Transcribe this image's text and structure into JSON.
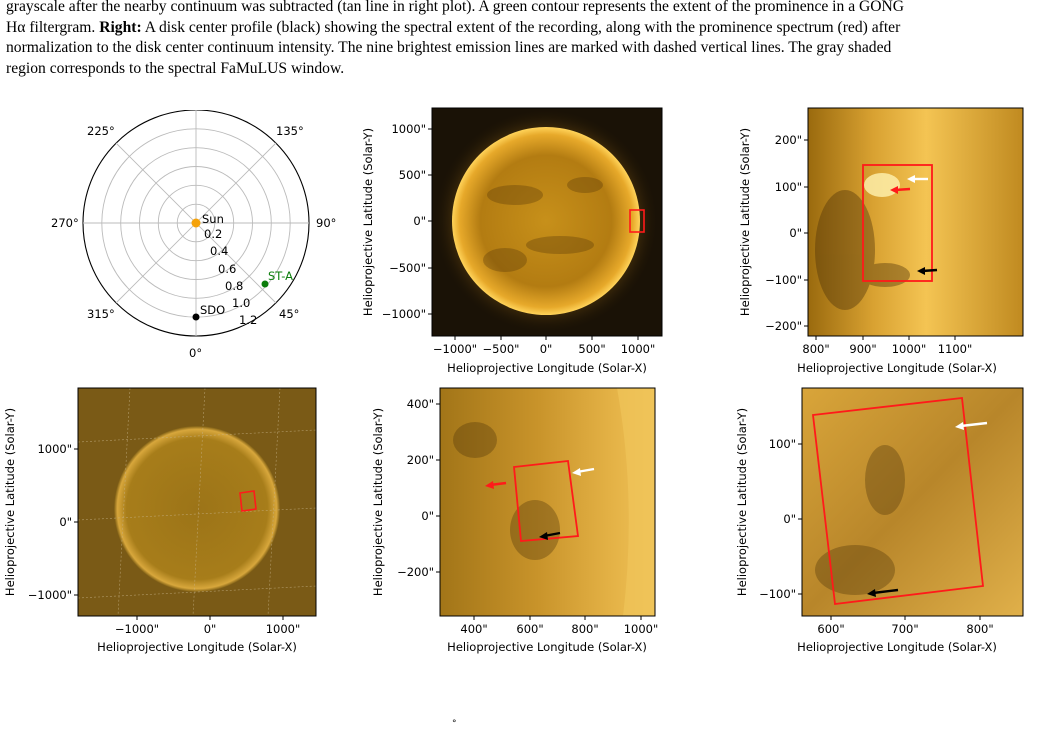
{
  "caption": {
    "line1": "grayscale after the nearby continuum was subtracted (tan line in right plot). A green contour represents the extent of the prominence in a GONG",
    "line2_pre": "Hα filtergram. ",
    "line2_bold": "Right:",
    "line2_post": " A disk center profile (black) showing the spectral extent of the recording, along with the prominence spectrum (red) after",
    "line3": "normalization to the disk center continuum intensity. The nine brightest emission lines are marked with dashed vertical lines. The gray shaded",
    "line4": "region corresponds to the spectral FaMuLUS window."
  },
  "polar": {
    "angle_labels": [
      "225°",
      "135°",
      "270°",
      "90°",
      "315°",
      "45°",
      "0°"
    ],
    "radial_labels": [
      "0.2",
      "0.4",
      "0.6",
      "0.8",
      "1.0",
      "1.2"
    ],
    "points": [
      {
        "name": "Sun",
        "color": "#f5a20a",
        "r": 0.0,
        "theta_deg": 0
      },
      {
        "name": "ST-A",
        "color": "#0b7d0b",
        "r": 1.0,
        "theta_deg": 45
      },
      {
        "name": "SDO",
        "color": "#000000",
        "r": 1.0,
        "theta_deg": 0
      }
    ]
  },
  "axes": {
    "ylabel": "Helioprojective Latitude (Solar-Y)",
    "xlabel": "Helioprojective Longitude (Solar-X)"
  },
  "panels": {
    "top_mid": {
      "yticks": [
        "1000\"",
        "500\"",
        "0\"",
        "−500\"",
        "−1000\""
      ],
      "xticks": [
        "−1000\"",
        "−500\"",
        "0\"",
        "500\"",
        "1000\""
      ]
    },
    "top_right": {
      "yticks": [
        "200\"",
        "100\"",
        "0\"",
        "−100\"",
        "−200\""
      ],
      "xticks": [
        "800\"",
        "900\"",
        "1000\"",
        "1100\""
      ]
    },
    "bot_left": {
      "yticks": [
        "1000\"",
        "0\"",
        "−1000\""
      ],
      "xticks": [
        "−1000\"",
        "0\"",
        "1000\""
      ]
    },
    "bot_mid": {
      "yticks": [
        "400\"",
        "200\"",
        "0\"",
        "−200\""
      ],
      "xticks": [
        "400\"",
        "600\"",
        "800\"",
        "1000\""
      ]
    },
    "bot_right": {
      "yticks": [
        "100\"",
        "0\"",
        "−100\""
      ],
      "xticks": [
        "600\"",
        "700\"",
        "800\""
      ]
    }
  },
  "colors": {
    "box": "#ff1a1a",
    "sun_dark": "#3a2506",
    "sun_mid": "#b8860b",
    "sun_bright": "#ffcf4d"
  },
  "stray_mark": "°"
}
